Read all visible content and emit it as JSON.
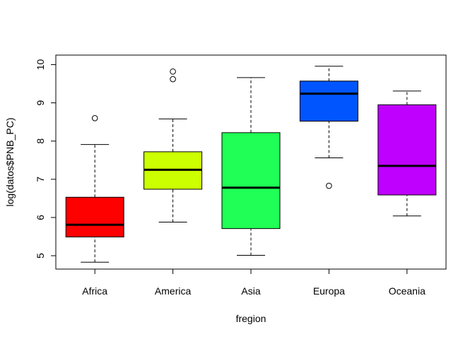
{
  "chart_data": {
    "type": "boxplot",
    "title": "",
    "xlabel": "fregion",
    "ylabel": "log(datos$PNB_PC)",
    "ylim": [
      4.65,
      10.25
    ],
    "yticks": [
      5,
      6,
      7,
      8,
      9,
      10
    ],
    "grid": false,
    "categories": [
      "Africa",
      "America",
      "Asia",
      "Europa",
      "Oceania"
    ],
    "colors": [
      "#FF0000",
      "#CCFF00",
      "#1FFF55",
      "#0055FF",
      "#BF00FF"
    ],
    "boxes": [
      {
        "whisker_low": 4.83,
        "q1": 5.49,
        "median": 5.81,
        "q3": 6.53,
        "whisker_high": 7.91,
        "outliers": [
          8.6
        ]
      },
      {
        "whisker_low": 5.88,
        "q1": 6.74,
        "median": 7.25,
        "q3": 7.72,
        "whisker_high": 8.58,
        "outliers": [
          9.62,
          9.82
        ]
      },
      {
        "whisker_low": 5.01,
        "q1": 5.71,
        "median": 6.78,
        "q3": 8.22,
        "whisker_high": 9.66,
        "outliers": []
      },
      {
        "whisker_low": 7.56,
        "q1": 8.52,
        "median": 9.24,
        "q3": 9.57,
        "whisker_high": 9.96,
        "outliers": [
          6.83
        ]
      },
      {
        "whisker_low": 6.04,
        "q1": 6.59,
        "median": 7.35,
        "q3": 8.95,
        "whisker_high": 9.31,
        "outliers": []
      }
    ]
  }
}
